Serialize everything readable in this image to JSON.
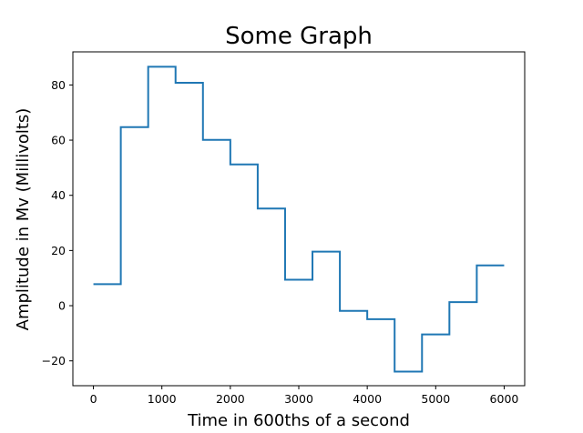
{
  "chart_data": {
    "type": "line",
    "drawstyle": "steps-post",
    "title": "Some Graph",
    "xlabel": "Time in 600ths of a second",
    "ylabel": "Amplitude in Mv (Millivolts)",
    "xlim": [
      -300,
      6300
    ],
    "ylim": [
      -29,
      92
    ],
    "xticks": [
      0,
      1000,
      2000,
      3000,
      4000,
      5000,
      6000
    ],
    "yticks": [
      -20,
      0,
      20,
      40,
      60,
      80
    ],
    "grid": false,
    "series": [
      {
        "color": "#1f77b4",
        "x": [
          0,
          400,
          800,
          1200,
          1600,
          2000,
          2400,
          2800,
          3200,
          3600,
          4000,
          4400,
          4800,
          5200,
          5600,
          6000
        ],
        "y": [
          7.8,
          64.7,
          86.6,
          80.8,
          60.1,
          51.2,
          35.2,
          9.4,
          19.6,
          -1.9,
          -4.9,
          -23.9,
          -10.4,
          1.3,
          14.6,
          14.6
        ]
      }
    ]
  }
}
